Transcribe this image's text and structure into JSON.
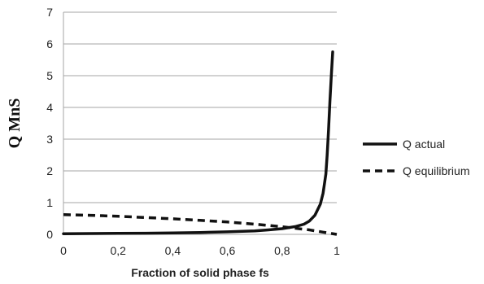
{
  "chart_data": {
    "type": "line",
    "xlabel": "Fraction of solid phase fs",
    "ylabel": "Q  MnS",
    "xlim": [
      0,
      1
    ],
    "ylim": [
      0,
      7
    ],
    "x_ticks": [
      "0",
      "0,2",
      "0,4",
      "0,6",
      "0,8",
      "1"
    ],
    "y_ticks": [
      "0",
      "1",
      "2",
      "3",
      "4",
      "5",
      "6",
      "7"
    ],
    "grid": "horizontal",
    "legend_position": "right",
    "series": [
      {
        "name": "Q actual",
        "style": "solid",
        "color": "#111111",
        "x": [
          0,
          0.1,
          0.2,
          0.3,
          0.4,
          0.5,
          0.6,
          0.7,
          0.75,
          0.8,
          0.85,
          0.88,
          0.9,
          0.92,
          0.94,
          0.95,
          0.96,
          0.965,
          0.97,
          0.975,
          0.98,
          0.985
        ],
        "y": [
          0.02,
          0.025,
          0.03,
          0.035,
          0.045,
          0.06,
          0.08,
          0.11,
          0.14,
          0.18,
          0.25,
          0.32,
          0.42,
          0.6,
          0.95,
          1.3,
          1.9,
          2.5,
          3.3,
          4.2,
          5.0,
          5.75
        ]
      },
      {
        "name": "Q equilibrium",
        "style": "dashed",
        "color": "#111111",
        "x": [
          0,
          0.1,
          0.2,
          0.3,
          0.4,
          0.5,
          0.6,
          0.7,
          0.8,
          0.9,
          0.95,
          1.0
        ],
        "y": [
          0.62,
          0.6,
          0.57,
          0.53,
          0.49,
          0.44,
          0.39,
          0.32,
          0.24,
          0.14,
          0.07,
          0.0
        ]
      }
    ]
  }
}
